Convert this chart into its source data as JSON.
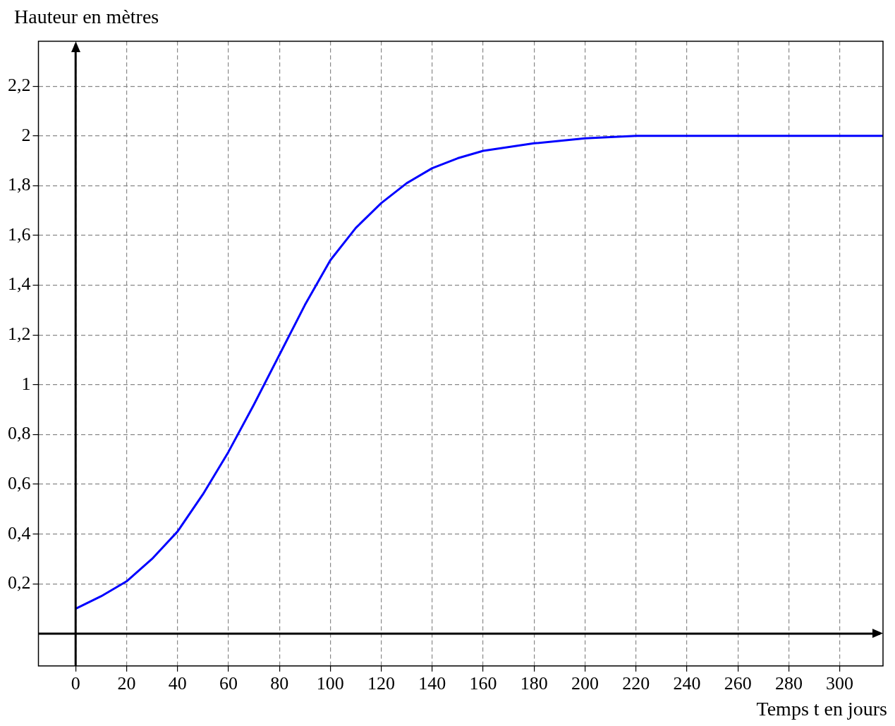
{
  "chart_data": {
    "type": "line",
    "xlabel": "Temps t en jours",
    "ylabel": "Hauteur en mètres",
    "x": [
      0,
      10,
      20,
      30,
      40,
      50,
      60,
      70,
      80,
      90,
      100,
      110,
      120,
      130,
      140,
      150,
      160,
      180,
      200,
      220,
      260,
      317
    ],
    "series": [
      {
        "color": "#0000ff",
        "values": [
          0.1,
          0.15,
          0.21,
          0.3,
          0.41,
          0.56,
          0.73,
          0.92,
          1.12,
          1.32,
          1.5,
          1.63,
          1.73,
          1.81,
          1.87,
          1.91,
          1.94,
          1.97,
          1.99,
          2.0,
          2.0,
          2.0
        ]
      }
    ],
    "xlim": [
      -14.6,
      317
    ],
    "ylim": [
      -0.13,
      2.38
    ],
    "xticks": [
      0,
      20,
      40,
      60,
      80,
      100,
      120,
      140,
      160,
      180,
      200,
      220,
      240,
      260,
      280,
      300
    ],
    "yticks": [
      {
        "value": 0.2,
        "label": "0,2"
      },
      {
        "value": 0.4,
        "label": "0,4"
      },
      {
        "value": 0.6,
        "label": "0,6"
      },
      {
        "value": 0.8,
        "label": "0,8"
      },
      {
        "value": 1,
        "label": "1"
      },
      {
        "value": 1.2,
        "label": "1,2"
      },
      {
        "value": 1.4,
        "label": "1,4"
      },
      {
        "value": 1.6,
        "label": "1,6"
      },
      {
        "value": 1.8,
        "label": "1,8"
      },
      {
        "value": 2,
        "label": "2"
      },
      {
        "value": 2.2,
        "label": "2,2"
      }
    ],
    "grid": true,
    "line_style": "solid"
  }
}
